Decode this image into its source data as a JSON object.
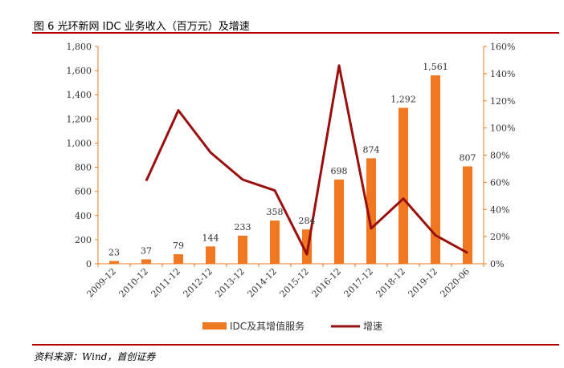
{
  "figure_title": "图 6 光环新网 IDC 业务收入（百万元）及增速",
  "source_note": "资料来源：Wind，首创证券",
  "chart_data": {
    "type": "bar+line",
    "categories": [
      "2009-12",
      "2010-12",
      "2011-12",
      "2012-12",
      "2013-12",
      "2014-12",
      "2015-12",
      "2016-12",
      "2017-12",
      "2018-12",
      "2019-12",
      "2020-06"
    ],
    "series": [
      {
        "name": "IDC及其增值服务",
        "type": "bar",
        "axis": "left",
        "color": "#f07820",
        "values": [
          23,
          37,
          79,
          144,
          233,
          358,
          284,
          698,
          874,
          1292,
          1561,
          807
        ],
        "labels": [
          "23",
          "37",
          "79",
          "144",
          "233",
          "358",
          "284",
          "698",
          "874",
          "1,292",
          "1,561",
          "807"
        ]
      },
      {
        "name": "增速",
        "type": "line",
        "axis": "right",
        "color": "#9b0e0e",
        "values": [
          null,
          61,
          113,
          82,
          62,
          54,
          7,
          146,
          26,
          48,
          21,
          8
        ]
      }
    ],
    "y_left": {
      "min": 0,
      "max": 1800,
      "step": 200,
      "tick_labels": [
        "0",
        "200",
        "400",
        "600",
        "800",
        "1,000",
        "1,200",
        "1,400",
        "1,600",
        "1,800"
      ]
    },
    "y_right": {
      "min": 0,
      "max": 160,
      "step": 20,
      "tick_labels": [
        "0%",
        "20%",
        "40%",
        "60%",
        "80%",
        "100%",
        "120%",
        "140%",
        "160%"
      ]
    },
    "axis_color": "#f07820",
    "grid": false,
    "legend_position": "bottom"
  }
}
